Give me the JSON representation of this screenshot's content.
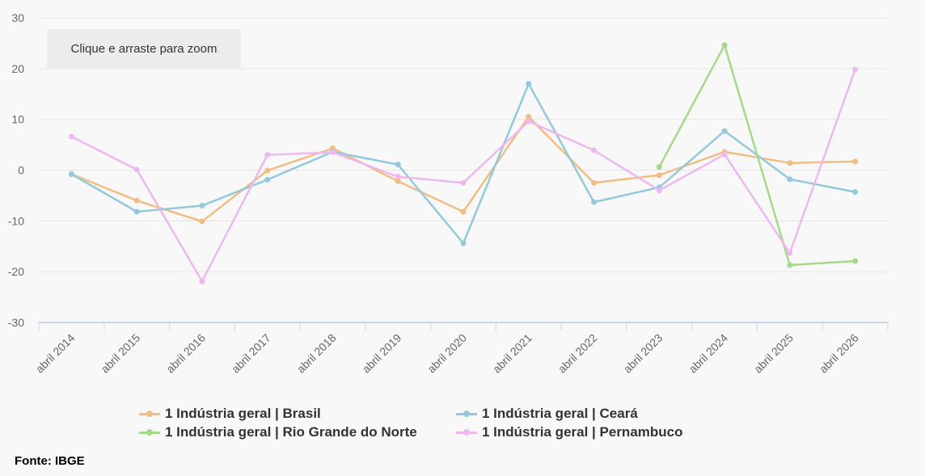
{
  "zoom_hint": "Clique e arraste para zoom",
  "source": "Fonte: IBGE",
  "chart_data": {
    "type": "line",
    "title": "",
    "xlabel": "",
    "ylabel": "",
    "ylim": [
      -30,
      30
    ],
    "yticks": [
      30,
      20,
      10,
      0,
      -10,
      -20,
      -30
    ],
    "grid": true,
    "legend_position": "bottom",
    "categories": [
      "abril 2014",
      "abril 2015",
      "abril 2016",
      "abril 2017",
      "abril 2018",
      "abril 2019",
      "abril 2020",
      "abril 2021",
      "abril 2022",
      "abril 2023",
      "abril 2024",
      "abril 2025",
      "abril 2026"
    ],
    "series": [
      {
        "name": "1 Indústria geral | Brasil",
        "color": "#f0bd82",
        "values": [
          -0.8,
          -6.0,
          -10.1,
          -0.1,
          4.3,
          -2.2,
          -8.2,
          10.5,
          -2.5,
          -1.0,
          3.6,
          1.4,
          1.7
        ]
      },
      {
        "name": "1 Indústria geral | Ceará",
        "color": "#93c9da",
        "values": [
          -0.8,
          -8.2,
          -7.0,
          -1.9,
          3.6,
          1.1,
          -14.4,
          17.0,
          -6.3,
          -3.4,
          7.7,
          -1.8,
          -4.3
        ]
      },
      {
        "name": "1 Indústria geral | Rio Grande do Norte",
        "color": "#a6d889",
        "values": [
          null,
          null,
          null,
          null,
          null,
          null,
          null,
          null,
          null,
          0.6,
          24.6,
          -18.7,
          -17.9
        ]
      },
      {
        "name": "1 Indústria geral | Pernambuco",
        "color": "#edb8f0",
        "values": [
          6.6,
          0.1,
          -21.9,
          3.0,
          3.5,
          -1.3,
          -2.5,
          9.6,
          3.9,
          -4.0,
          3.1,
          -16.3,
          19.8
        ]
      }
    ]
  }
}
